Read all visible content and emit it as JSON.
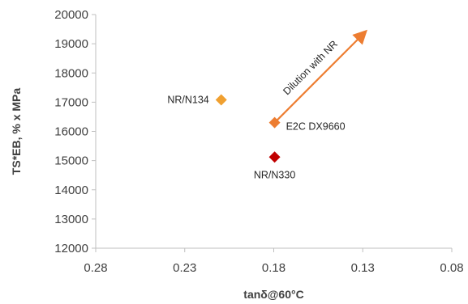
{
  "chart_data": {
    "type": "scatter",
    "xlabel": "tanδ@60°C",
    "ylabel": "TS*EB, % x MPa",
    "x_reversed": true,
    "xlim": [
      0.08,
      0.28
    ],
    "ylim": [
      12000,
      20000
    ],
    "x_ticks": [
      "0.28",
      "0.23",
      "0.18",
      "0.13",
      "0.08"
    ],
    "y_ticks": [
      "12000",
      "13000",
      "14000",
      "15000",
      "16000",
      "17000",
      "18000",
      "19000",
      "20000"
    ],
    "grid": false,
    "points": [
      {
        "label": "NR/N134",
        "x": 0.2095,
        "y": 17080,
        "color": "#f0a030",
        "marker": "diamond"
      },
      {
        "label": "E2C DX9660",
        "x": 0.1795,
        "y": 16300,
        "color": "#ed7d31",
        "marker": "diamond"
      },
      {
        "label": "NR/N330",
        "x": 0.1795,
        "y": 15120,
        "color": "#c00000",
        "marker": "diamond"
      }
    ],
    "arrow": {
      "label": "Dilution with NR",
      "from": {
        "x": 0.1795,
        "y": 16300
      },
      "to": {
        "x": 0.1295,
        "y": 19350
      },
      "color": "#ed7d31"
    }
  }
}
